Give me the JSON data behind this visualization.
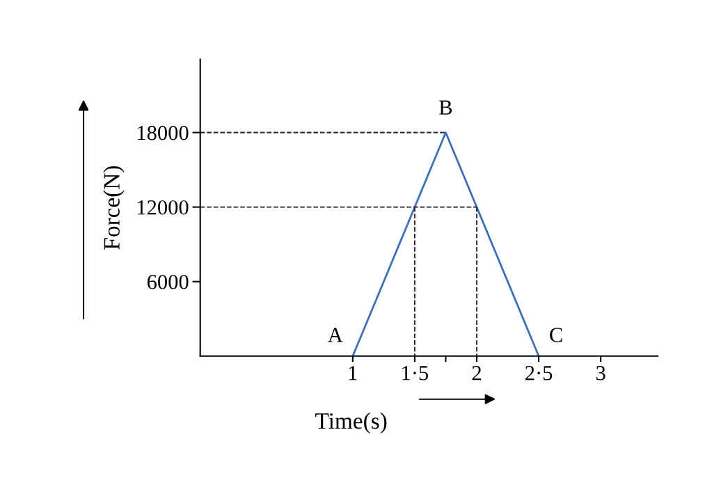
{
  "chart_data": {
    "type": "line",
    "xlabel": "Time(s)",
    "ylabel": "Force(N)",
    "xlim": [
      -0.23,
      3.46
    ],
    "ylim": [
      0,
      23900
    ],
    "xticks": [
      1,
      {
        "value": 1.5,
        "label": "1·5"
      },
      {
        "value": 1.75,
        "label": null
      },
      2,
      {
        "value": 2.5,
        "label": "2·5"
      },
      3
    ],
    "yticks": [
      6000,
      12000,
      18000
    ],
    "grid": false,
    "legend": false,
    "series": [
      {
        "color": "#3b6fc4",
        "x": [
          1,
          1.75,
          2.5
        ],
        "values": [
          0,
          18000,
          0
        ],
        "line_style": "solid"
      },
      {
        "color": "#222222",
        "x": [
          -0.23,
          1.75
        ],
        "values": [
          18000,
          18000
        ],
        "line_style": "dashed"
      },
      {
        "color": "#222222",
        "x": [
          -0.23,
          2
        ],
        "values": [
          12000,
          12000
        ],
        "line_style": "dashed"
      },
      {
        "color": "#222222",
        "x": [
          1.5,
          1.5
        ],
        "values": [
          12000,
          0
        ],
        "line_style": "dashed"
      },
      {
        "color": "#222222",
        "x": [
          2,
          2
        ],
        "values": [
          12000,
          0
        ],
        "line_style": "dashed"
      }
    ],
    "annotations": [
      {
        "text": "A",
        "x": 1,
        "y": 0
      },
      {
        "text": "B",
        "x": 1.75,
        "y": 18000
      },
      {
        "text": "C",
        "x": 2.5,
        "y": 0
      }
    ]
  }
}
